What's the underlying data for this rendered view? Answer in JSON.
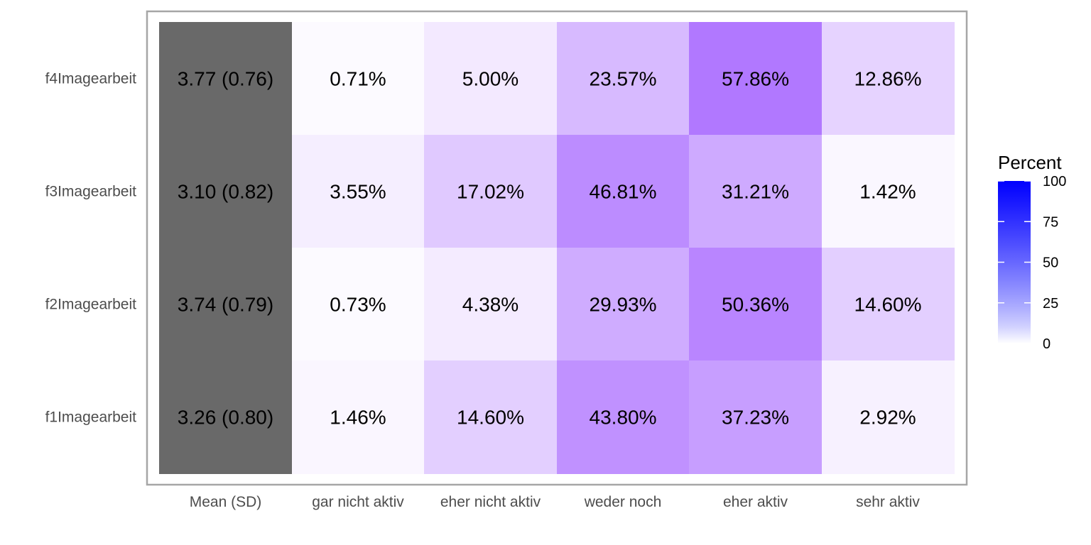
{
  "chart_data": {
    "type": "heatmap",
    "columns": [
      "Mean (SD)",
      "gar nicht aktiv",
      "eher nicht aktiv",
      "weder noch",
      "eher aktiv",
      "sehr aktiv"
    ],
    "rows": [
      "f4Imagearbeit",
      "f3Imagearbeit",
      "f2Imagearbeit",
      "f1Imagearbeit"
    ],
    "mean_sd": [
      "3.77 (0.76)",
      "3.10 (0.82)",
      "3.74 (0.79)",
      "3.26 (0.80)"
    ],
    "values": [
      [
        0.71,
        5.0,
        23.57,
        57.86,
        12.86
      ],
      [
        3.55,
        17.02,
        46.81,
        31.21,
        1.42
      ],
      [
        0.73,
        4.38,
        29.93,
        50.36,
        14.6
      ],
      [
        1.46,
        14.6,
        43.8,
        37.23,
        2.92
      ]
    ],
    "value_labels": [
      [
        "0.71%",
        "5.00%",
        "23.57%",
        "57.86%",
        "12.86%"
      ],
      [
        "3.55%",
        "17.02%",
        "46.81%",
        "31.21%",
        "1.42%"
      ],
      [
        "0.73%",
        "4.38%",
        "29.93%",
        "50.36%",
        "14.60%"
      ],
      [
        "1.46%",
        "14.60%",
        "43.80%",
        "37.23%",
        "2.92%"
      ]
    ],
    "legend": {
      "title": "Percent",
      "range": [
        0,
        100
      ],
      "ticks": [
        0,
        25,
        50,
        75,
        100
      ],
      "tick_labels": [
        "0",
        "25",
        "50",
        "75",
        "100"
      ],
      "low_color": "#ffffff",
      "high_color": "#0000ff",
      "placement": "right"
    },
    "mean_column_color": "#696969",
    "cell_color_formula": "rgb(255 - 0.8*(p^0.75)*147, 255 - 0.8*(p^0.75)*255, 255)",
    "border_color": "#a6a6a6",
    "grid": false
  }
}
